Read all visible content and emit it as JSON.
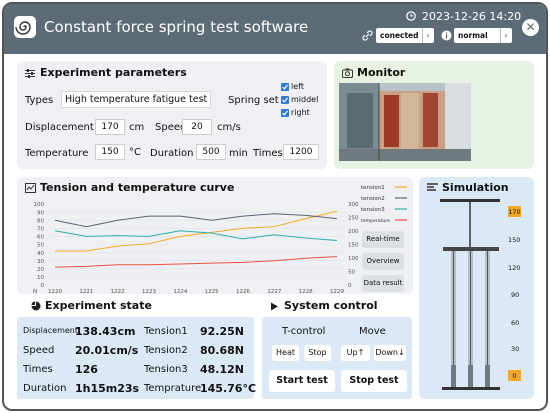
{
  "app": {
    "title": "Constant force spring test software",
    "datetime": "2023-12-26 14:20",
    "connection": "conected",
    "mode": "normal"
  },
  "params": {
    "title": "Experiment parameters",
    "types_label": "Types",
    "types_value": "High temperature fatigue test",
    "spring_set_label": "Spring set",
    "springs": [
      "left",
      "middel",
      "right"
    ],
    "displacement_label": "Displacement",
    "displacement_value": "170",
    "displacement_unit": "cm",
    "speed_label": "Speed",
    "speed_value": "20",
    "speed_unit": "cm/s",
    "temperature_label": "Temperature",
    "temperature_value": "150",
    "temperature_unit": "°C",
    "duration_label": "Duration",
    "duration_value": "500",
    "duration_unit": "min",
    "times_label": "Times",
    "times_value": "1200"
  },
  "monitor": {
    "title": "Monitor"
  },
  "curve": {
    "title": "Tension and temperature curve",
    "buttons": [
      "Real-time",
      "Overview",
      "Data result"
    ],
    "n_label": "N"
  },
  "chart_data": {
    "type": "line",
    "x": [
      "1220",
      "1221",
      "1222",
      "1223",
      "1224",
      "1225",
      "1226",
      "1227",
      "1228",
      "1229"
    ],
    "ylim_left": [
      0,
      100
    ],
    "yticks_left": [
      "0",
      "10",
      "20",
      "30",
      "40",
      "50",
      "60",
      "70",
      "80",
      "90",
      "100"
    ],
    "ylim_right": [
      0,
      300
    ],
    "yticks_right": [
      "0",
      "50",
      "100",
      "150",
      "200",
      "250",
      "300"
    ],
    "series": [
      {
        "name": "tension1",
        "color": "#f5a623",
        "values": [
          42,
          42,
          48,
          51,
          60,
          65,
          70,
          72,
          82,
          91
        ]
      },
      {
        "name": "tension2",
        "color": "#5a6475",
        "values": [
          80,
          72,
          80,
          85,
          85,
          80,
          85,
          88,
          86,
          82
        ]
      },
      {
        "name": "tension3",
        "color": "#2bb1a3",
        "values": [
          67,
          60,
          61,
          60,
          67,
          64,
          57,
          62,
          58,
          55
        ]
      },
      {
        "name": "temperature",
        "color": "#e8533f",
        "values": [
          22,
          23,
          25,
          25,
          26,
          27,
          28,
          30,
          33,
          35
        ]
      }
    ]
  },
  "simulation": {
    "title": "Simulation",
    "top_value": "170",
    "bottom_value": "0",
    "scale": [
      "150",
      "120",
      "90",
      "60",
      "30"
    ]
  },
  "state": {
    "title": "Experiment state",
    "displacement_label": "Displacement",
    "displacement_value": "138.43cm",
    "speed_label": "Speed",
    "speed_value": "20.01cm/s",
    "times_label": "Times",
    "times_value": "126",
    "duration_label": "Duration",
    "duration_value": "1h15m23s",
    "tension1_label": "Tension1",
    "tension1_value": "92.25N",
    "tension2_label": "Tension2",
    "tension2_value": "80.68N",
    "tension3_label": "Tension3",
    "tension3_value": "48.12N",
    "temperature_label": "Temprature",
    "temperature_value": "145.76°C"
  },
  "control": {
    "title": "System control",
    "tcontrol_label": "T-control",
    "heat": "Heat",
    "stop": "Stop",
    "move_label": "Move",
    "up": "Up↑",
    "down": "Down↓",
    "start_test": "Start test",
    "stop_test": "Stop test"
  },
  "colors": {
    "header": "#5b6c76",
    "accent": "#2f7bd8",
    "panel_blue": "#dbe9f7",
    "panel_green": "#e8f2e4",
    "sim_marker": "#f5a623"
  }
}
